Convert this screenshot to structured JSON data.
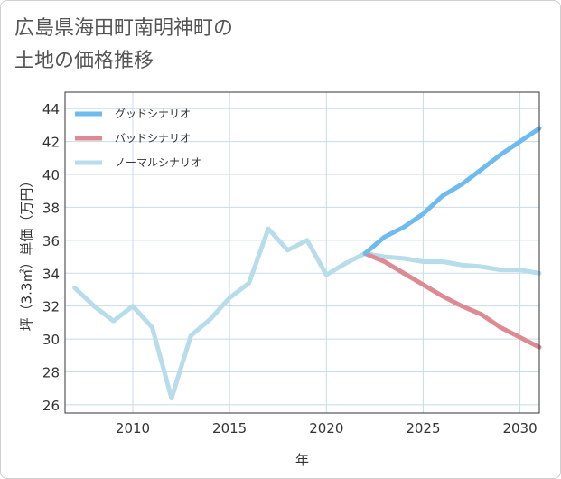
{
  "title_lines": [
    "広島県海田町南明神町の",
    "土地の価格推移"
  ],
  "colors": {
    "good": "#6dbbef",
    "bad": "#de8a93",
    "normal": "#b7dcea",
    "grid": "#c8dbe8",
    "frame": "#333333"
  },
  "chart_data": {
    "type": "line",
    "title": "広島県海田町南明神町の土地の価格推移",
    "xlabel": "年",
    "ylabel": "坪（3.3㎡）単価（万円）",
    "xlim": [
      2006.5,
      2031
    ],
    "ylim": [
      25.5,
      45
    ],
    "x_ticks": [
      2010,
      2015,
      2020,
      2025,
      2030
    ],
    "x_tick_labels": [
      "2010",
      "2015",
      "2020",
      "2025",
      "2030"
    ],
    "y_ticks": [
      26,
      28,
      30,
      32,
      34,
      36,
      38,
      40,
      42,
      44
    ],
    "y_tick_labels": [
      "26",
      "28",
      "30",
      "32",
      "34",
      "36",
      "38",
      "40",
      "42",
      "44"
    ],
    "grid": true,
    "legend_position": "top-left",
    "series": [
      {
        "name": "グッドシナリオ",
        "key": "good",
        "x": [
          2022,
          2023,
          2024,
          2025,
          2026,
          2027,
          2028,
          2029,
          2030,
          2031
        ],
        "values": [
          35.2,
          36.2,
          36.8,
          37.6,
          38.7,
          39.4,
          40.3,
          41.2,
          42.0,
          42.8
        ]
      },
      {
        "name": "バッドシナリオ",
        "key": "bad",
        "x": [
          2022,
          2023,
          2024,
          2025,
          2026,
          2027,
          2028,
          2029,
          2030,
          2031
        ],
        "values": [
          35.2,
          34.7,
          34.0,
          33.3,
          32.6,
          32.0,
          31.5,
          30.7,
          30.1,
          29.5
        ]
      },
      {
        "name": "ノーマルシナリオ",
        "key": "normal",
        "x": [
          2007,
          2008,
          2009,
          2010,
          2011,
          2012,
          2013,
          2014,
          2015,
          2016,
          2017,
          2018,
          2019,
          2020,
          2021,
          2022,
          2023,
          2024,
          2025,
          2026,
          2027,
          2028,
          2029,
          2030,
          2031
        ],
        "values": [
          33.1,
          32.0,
          31.1,
          32.0,
          30.7,
          26.4,
          30.2,
          31.2,
          32.5,
          33.4,
          36.7,
          35.4,
          36.0,
          33.9,
          34.6,
          35.2,
          35.0,
          34.9,
          34.7,
          34.7,
          34.5,
          34.4,
          34.2,
          34.2,
          34.0
        ]
      }
    ]
  }
}
